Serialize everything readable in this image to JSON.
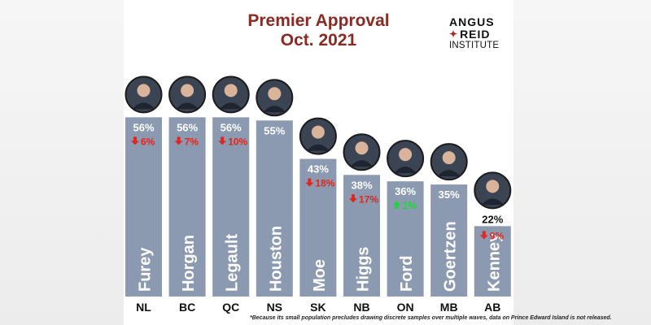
{
  "title": {
    "line1": "Premier Approval",
    "line2": "Oct. 2021"
  },
  "logo": {
    "line1": "ANGUS",
    "line2": "REID",
    "line3": "INSTITUTE"
  },
  "colors": {
    "bar": "#8b9ab0",
    "title": "#8b2a22",
    "down_arrow": "#e0261d",
    "up_arrow": "#22d33e",
    "photo_ring": "#1c1c1c"
  },
  "chart_data": {
    "type": "bar",
    "title": "Premier Approval Oct. 2021",
    "categories": [
      "NL",
      "BC",
      "QC",
      "NS",
      "SK",
      "NB",
      "ON",
      "MB",
      "AB"
    ],
    "premiers": [
      "Furey",
      "Horgan",
      "Legault",
      "Houston",
      "Moe",
      "Higgs",
      "Ford",
      "Goertzen",
      "Kenney"
    ],
    "values": [
      56,
      56,
      56,
      55,
      43,
      38,
      36,
      35,
      22
    ],
    "value_labels": [
      "56%",
      "56%",
      "56%",
      "55%",
      "43%",
      "38%",
      "36%",
      "35%",
      "22%"
    ],
    "changes": [
      {
        "direction": "down",
        "label": "6%"
      },
      {
        "direction": "down",
        "label": "7%"
      },
      {
        "direction": "down",
        "label": "10%"
      },
      null,
      {
        "direction": "down",
        "label": "18%"
      },
      {
        "direction": "down",
        "label": "17%"
      },
      {
        "direction": "up",
        "label": "1%"
      },
      null,
      {
        "direction": "down",
        "label": "9%"
      }
    ],
    "ylim": [
      0,
      60
    ],
    "xlabel": "",
    "ylabel": "",
    "legend": "none",
    "grid": false
  },
  "footnote": "*Because its small population precludes drawing discrete samples over multiple waves, data on Prince Edward Island is not released."
}
